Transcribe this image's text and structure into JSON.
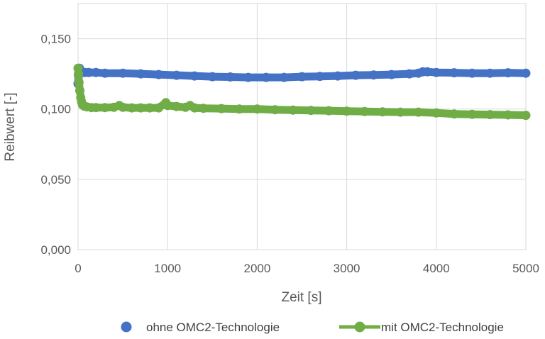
{
  "chart_data": {
    "type": "line",
    "xlabel": "Zeit [s]",
    "ylabel": "Reibwert [-]",
    "xlim": [
      0,
      5000
    ],
    "ylim": [
      0,
      0.175
    ],
    "x_ticks": [
      "0",
      "1000",
      "2000",
      "3000",
      "4000",
      "5000"
    ],
    "y_ticks": [
      "0,000",
      "0,050",
      "0,100",
      "0,150"
    ],
    "grid": true,
    "legend_position": "bottom",
    "series": [
      {
        "name": "ohne OMC2-Technologie",
        "color": "#4472C4",
        "marker": "dot",
        "x": [
          0,
          5,
          10,
          15,
          20,
          30,
          50,
          80,
          120,
          200,
          300,
          500,
          700,
          900,
          1100,
          1300,
          1500,
          1700,
          1900,
          2100,
          2300,
          2500,
          2700,
          2900,
          3100,
          3300,
          3500,
          3700,
          3800,
          3850,
          3900,
          4000,
          4200,
          4400,
          4600,
          4800,
          5000
        ],
        "y": [
          0.118,
          0.124,
          0.128,
          0.129,
          0.128,
          0.127,
          0.126,
          0.126,
          0.126,
          0.126,
          0.1255,
          0.1255,
          0.125,
          0.1245,
          0.124,
          0.1235,
          0.123,
          0.1228,
          0.1225,
          0.1225,
          0.1225,
          0.123,
          0.1232,
          0.1235,
          0.124,
          0.1242,
          0.1245,
          0.125,
          0.1255,
          0.1265,
          0.1265,
          0.126,
          0.1258,
          0.1255,
          0.1255,
          0.1258,
          0.1255
        ]
      },
      {
        "name": "mit OMC2-Technologie",
        "color": "#70AD47",
        "marker": "line-dot",
        "x": [
          0,
          5,
          10,
          20,
          30,
          40,
          50,
          70,
          100,
          150,
          200,
          300,
          400,
          460,
          500,
          600,
          700,
          800,
          900,
          980,
          1000,
          1100,
          1200,
          1250,
          1300,
          1400,
          1600,
          1800,
          2000,
          2200,
          2400,
          2600,
          2800,
          3000,
          3200,
          3400,
          3600,
          3800,
          4000,
          4200,
          4400,
          4600,
          4800,
          5000
        ],
        "y": [
          0.129,
          0.125,
          0.119,
          0.113,
          0.108,
          0.105,
          0.103,
          0.102,
          0.1015,
          0.101,
          0.101,
          0.101,
          0.1012,
          0.1025,
          0.1012,
          0.1008,
          0.1008,
          0.1008,
          0.1008,
          0.1045,
          0.1025,
          0.1018,
          0.1012,
          0.1025,
          0.1008,
          0.1005,
          0.1003,
          0.1,
          0.1,
          0.0995,
          0.0992,
          0.099,
          0.0988,
          0.0985,
          0.0982,
          0.098,
          0.0978,
          0.0978,
          0.0972,
          0.0965,
          0.0962,
          0.096,
          0.0958,
          0.0955
        ]
      }
    ]
  }
}
